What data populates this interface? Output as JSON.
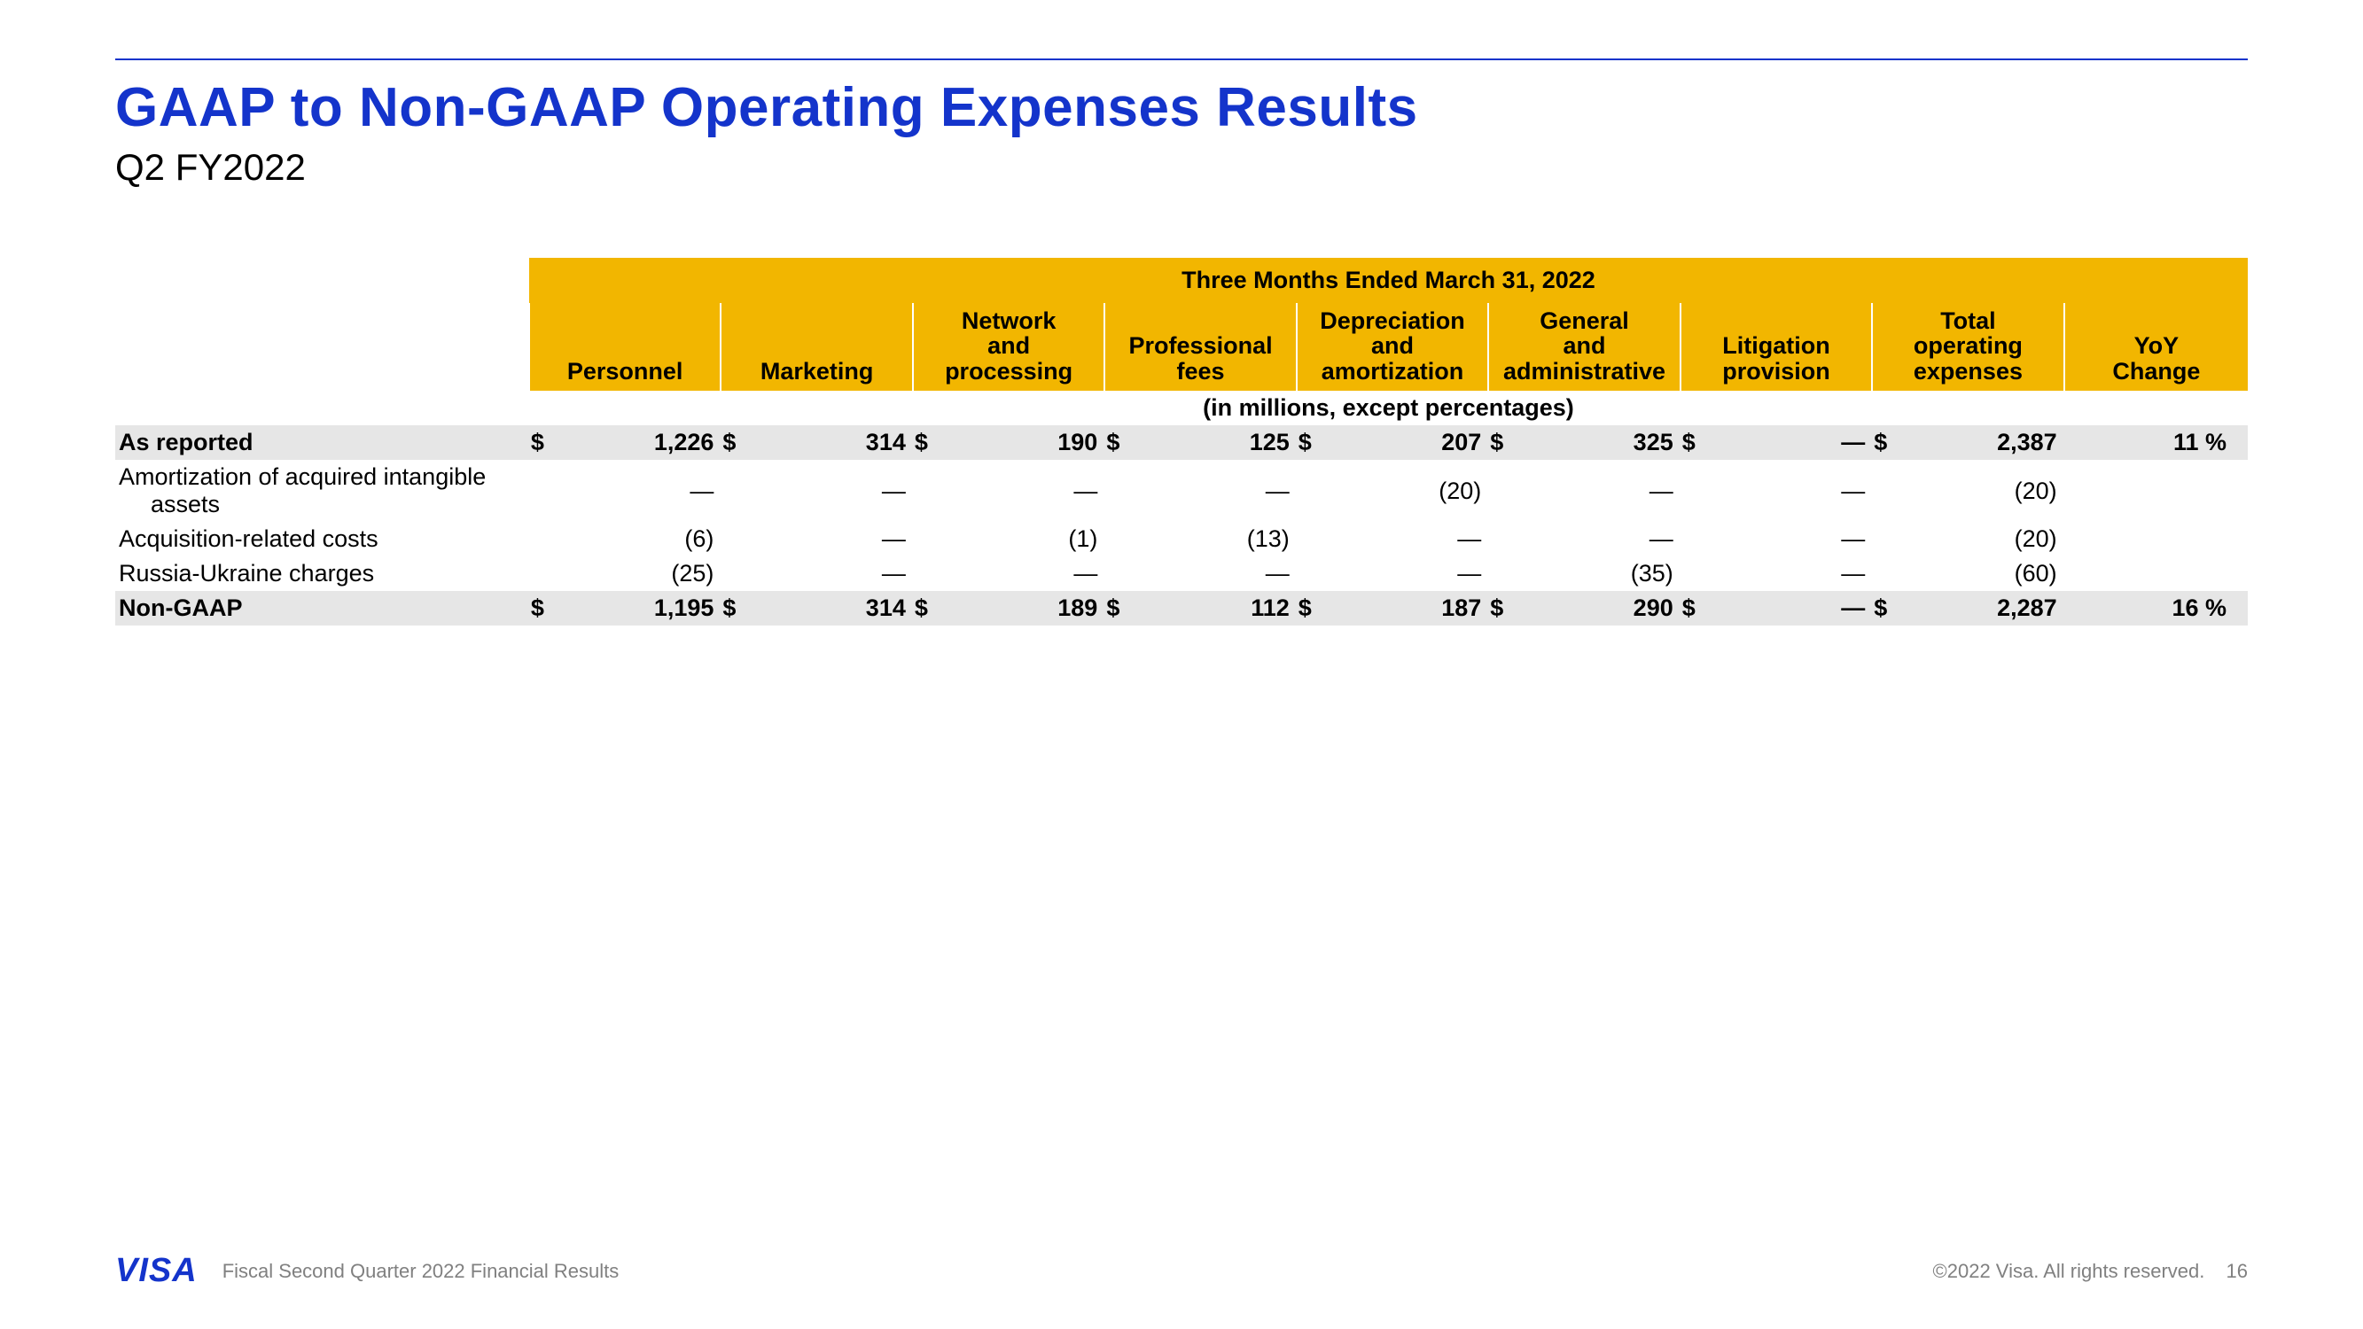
{
  "title": "GAAP to Non-GAAP Operating Expenses Results",
  "subtitle": "Q2 FY2022",
  "table": {
    "period_header": "Three Months Ended March 31, 2022",
    "units_note": "(in millions, except percentages)",
    "columns": [
      "Personnel",
      "Marketing",
      "Network\nand\nprocessing",
      "Professional\nfees",
      "Depreciation\nand\namortization",
      "General\nand\nadministrative",
      "Litigation\nprovision",
      "Total\noperating\nexpenses",
      "YoY\nChange"
    ],
    "rows": [
      {
        "label": "As reported",
        "shade": true,
        "bold": true,
        "indent": false,
        "sym": [
          "$",
          "$",
          "$",
          "$",
          "$",
          "$",
          "$",
          "$",
          ""
        ],
        "vals": [
          "1,226",
          "314",
          "190",
          "125",
          "207",
          "325",
          "—",
          "2,387",
          "11 %"
        ]
      },
      {
        "label": "Amortization of acquired intangible assets",
        "shade": false,
        "bold": false,
        "indent": true,
        "sym": [
          "",
          "",
          "",
          "",
          "",
          "",
          "",
          "",
          ""
        ],
        "vals": [
          "—",
          "—",
          "—",
          "—",
          "(20)",
          "—",
          "—",
          "(20)",
          ""
        ]
      },
      {
        "label": "Acquisition-related costs",
        "shade": false,
        "bold": false,
        "indent": false,
        "sym": [
          "",
          "",
          "",
          "",
          "",
          "",
          "",
          "",
          ""
        ],
        "vals": [
          "(6)",
          "—",
          "(1)",
          "(13)",
          "—",
          "—",
          "—",
          "(20)",
          ""
        ]
      },
      {
        "label": "Russia-Ukraine charges",
        "shade": false,
        "bold": false,
        "indent": false,
        "sym": [
          "",
          "",
          "",
          "",
          "",
          "",
          "",
          "",
          ""
        ],
        "vals": [
          "(25)",
          "—",
          "—",
          "—",
          "—",
          "(35)",
          "—",
          "(60)",
          ""
        ]
      },
      {
        "label": "Non-GAAP",
        "shade": true,
        "bold": true,
        "indent": false,
        "sym": [
          "$",
          "$",
          "$",
          "$",
          "$",
          "$",
          "$",
          "$",
          ""
        ],
        "vals": [
          "1,195",
          "314",
          "189",
          "112",
          "187",
          "290",
          "—",
          "2,287",
          "16 %"
        ]
      }
    ]
  },
  "footer": {
    "logo": "VISA",
    "left": "Fiscal Second Quarter 2022 Financial Results",
    "right": "©2022 Visa. All rights reserved.",
    "page": "16"
  },
  "colors": {
    "accent_blue": "#1434cb",
    "header_gold": "#f2b600",
    "row_shade": "#e6e6e6",
    "footer_gray": "#808080",
    "background": "#ffffff"
  }
}
